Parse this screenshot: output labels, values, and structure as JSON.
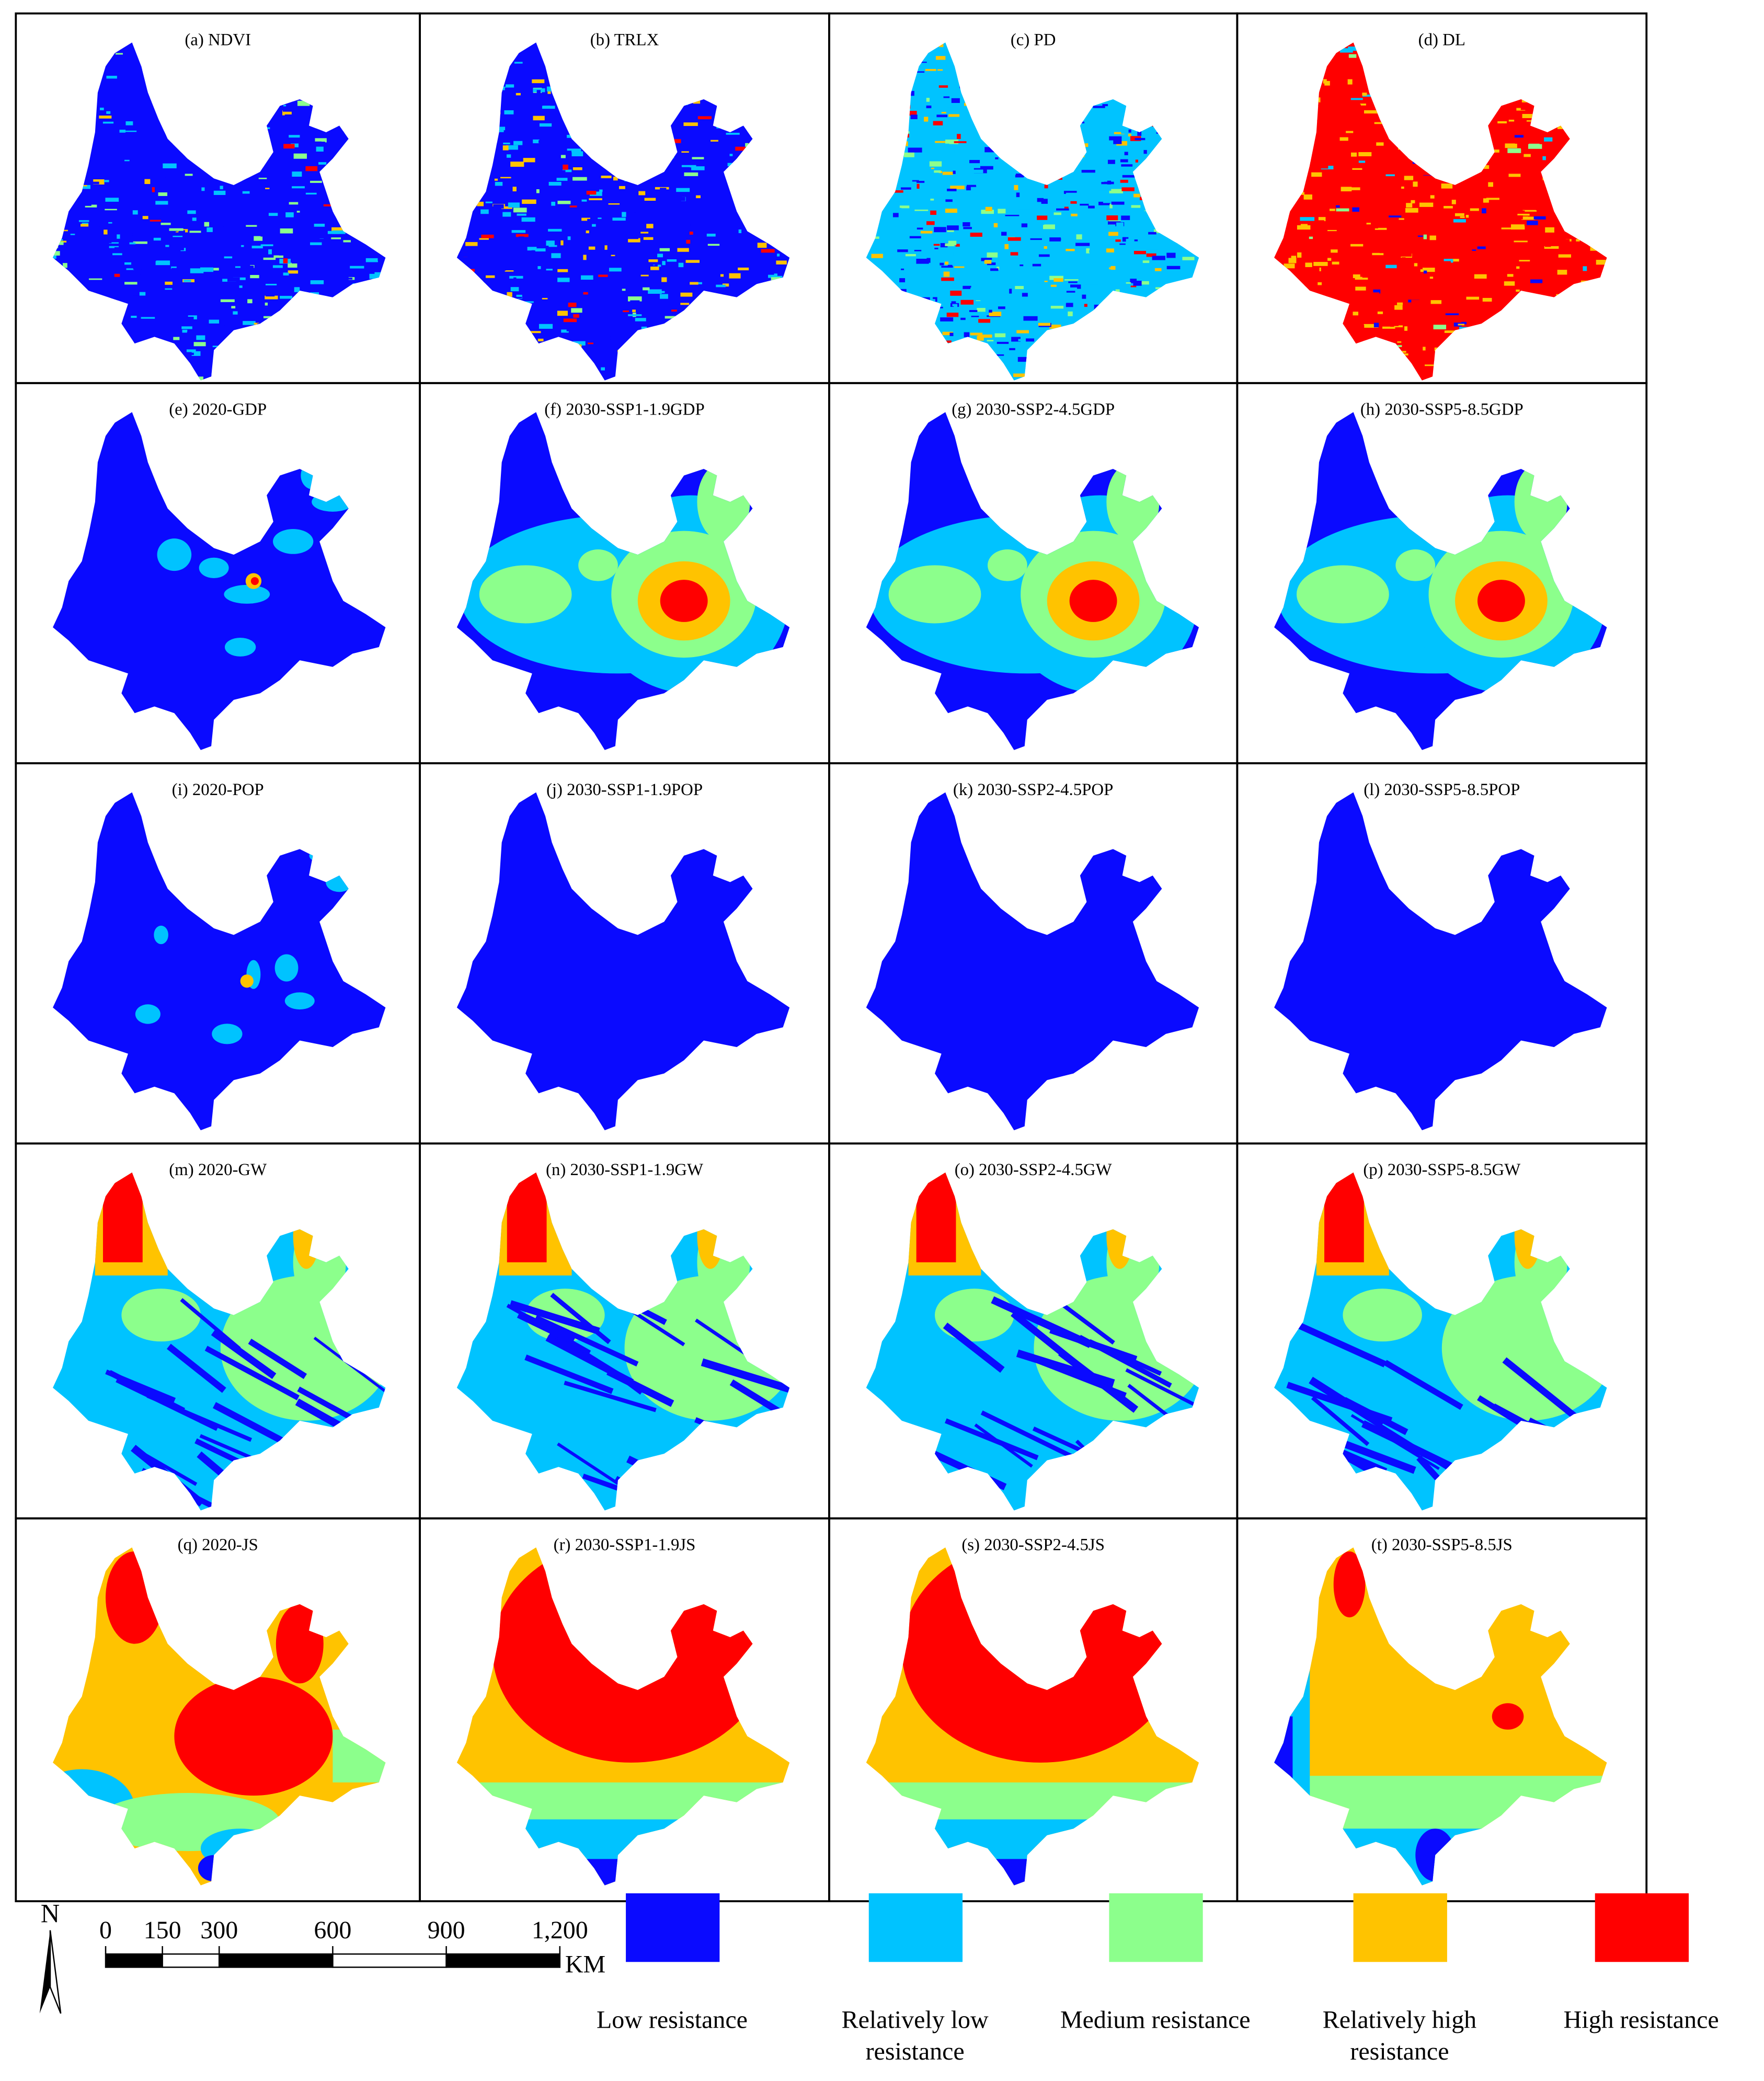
{
  "panels": [
    {
      "title": "(a) NDVI"
    },
    {
      "title": "(b) TRLX"
    },
    {
      "title": "(c) PD"
    },
    {
      "title": "(d) DL"
    },
    {
      "title": "(e) 2020-GDP"
    },
    {
      "title": "(f) 2030-SSP1-1.9GDP"
    },
    {
      "title": "(g) 2030-SSP2-4.5GDP"
    },
    {
      "title": "(h) 2030-SSP5-8.5GDP"
    },
    {
      "title": "(i) 2020-POP"
    },
    {
      "title": "(j) 2030-SSP1-1.9POP"
    },
    {
      "title": "(k) 2030-SSP2-4.5POP"
    },
    {
      "title": "(l) 2030-SSP5-8.5POP"
    },
    {
      "title": "(m) 2020-GW"
    },
    {
      "title": "(n) 2030-SSP1-1.9GW"
    },
    {
      "title": "(o) 2030-SSP2-4.5GW"
    },
    {
      "title": "(p) 2030-SSP5-8.5GW"
    },
    {
      "title": "(q) 2020-JS"
    },
    {
      "title": "(r) 2030-SSP1-1.9JS"
    },
    {
      "title": "(s) 2030-SSP2-4.5JS"
    },
    {
      "title": "(t) 2030-SSP5-8.5JS"
    }
  ],
  "north_label": "N",
  "scale_bar": {
    "ticks": [
      0,
      150,
      300,
      600,
      900,
      {
        "value": 1200,
        "label": "1,200"
      }
    ],
    "unit": "KM"
  },
  "legend": [
    {
      "label": [
        "Low resistance"
      ],
      "color": "#0a0aff"
    },
    {
      "label": [
        "Relatively low",
        "resistance"
      ],
      "color": "#00c3ff"
    },
    {
      "label": [
        "Medium resistance"
      ],
      "color": "#8cff8c"
    },
    {
      "label": [
        "Relatively high",
        "resistance"
      ],
      "color": "#ffc300"
    },
    {
      "label": [
        "High resistance"
      ],
      "color": "#ff0000"
    }
  ]
}
